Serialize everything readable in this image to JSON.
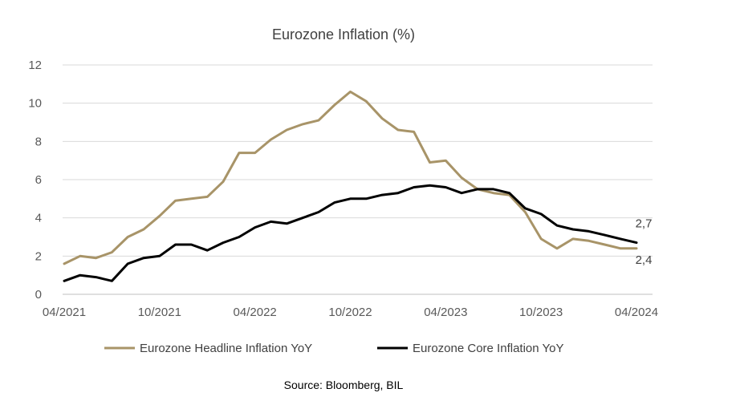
{
  "chart_data": {
    "type": "line",
    "title": "Eurozone Inflation (%)",
    "source": "Source: Bloomberg, BIL",
    "ylim": [
      0,
      12
    ],
    "yticks": [
      "0",
      "2",
      "4",
      "6",
      "8",
      "10",
      "12"
    ],
    "xtick_labels": [
      "04/2021",
      "10/2021",
      "04/2022",
      "10/2022",
      "04/2023",
      "10/2023",
      "04/2024"
    ],
    "x": [
      "04/2021",
      "05/2021",
      "06/2021",
      "07/2021",
      "08/2021",
      "09/2021",
      "10/2021",
      "11/2021",
      "12/2021",
      "01/2022",
      "02/2022",
      "03/2022",
      "04/2022",
      "05/2022",
      "06/2022",
      "07/2022",
      "08/2022",
      "09/2022",
      "10/2022",
      "11/2022",
      "12/2022",
      "01/2023",
      "02/2023",
      "03/2023",
      "04/2023",
      "05/2023",
      "06/2023",
      "07/2023",
      "08/2023",
      "09/2023",
      "10/2023",
      "11/2023",
      "12/2023",
      "01/2024",
      "02/2024",
      "03/2024",
      "04/2024"
    ],
    "grid": "horizontal",
    "legend": "bottom",
    "series": [
      {
        "name": "Eurozone Headline Inflation YoY",
        "color": "#A89468",
        "values": [
          1.6,
          2.0,
          1.9,
          2.2,
          3.0,
          3.4,
          4.1,
          4.9,
          5.0,
          5.1,
          5.9,
          7.4,
          7.4,
          8.1,
          8.6,
          8.9,
          9.1,
          9.9,
          10.6,
          10.1,
          9.2,
          8.6,
          8.5,
          6.9,
          7.0,
          6.1,
          5.5,
          5.3,
          5.2,
          4.3,
          2.9,
          2.4,
          2.9,
          2.8,
          2.6,
          2.4,
          2.4
        ],
        "end_label": "2,4"
      },
      {
        "name": "Eurozone Core Inflation YoY",
        "color": "#000000",
        "values": [
          0.7,
          1.0,
          0.9,
          0.7,
          1.6,
          1.9,
          2.0,
          2.6,
          2.6,
          2.3,
          2.7,
          3.0,
          3.5,
          3.8,
          3.7,
          4.0,
          4.3,
          4.8,
          5.0,
          5.0,
          5.2,
          5.3,
          5.6,
          5.7,
          5.6,
          5.3,
          5.5,
          5.5,
          5.3,
          4.5,
          4.2,
          3.6,
          3.4,
          3.3,
          3.1,
          2.9,
          2.7
        ],
        "end_label": "2,7"
      }
    ]
  }
}
